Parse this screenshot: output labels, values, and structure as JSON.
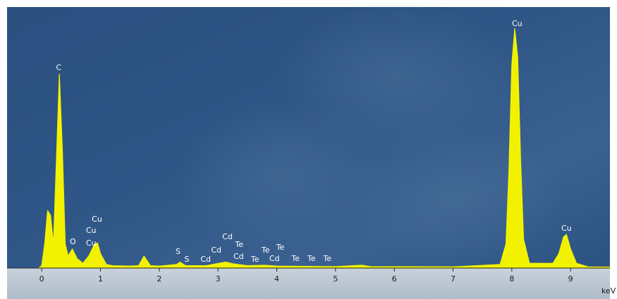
{
  "chart_data": {
    "type": "area",
    "xlabel": "keV",
    "color": "#f2f200",
    "x": [
      -0.05,
      0.0,
      0.05,
      0.1,
      0.15,
      0.2,
      0.25,
      0.3,
      0.35,
      0.4,
      0.45,
      0.52,
      0.6,
      0.7,
      0.8,
      0.9,
      0.95,
      1.0,
      1.1,
      1.2,
      1.5,
      1.65,
      1.74,
      1.85,
      2.0,
      2.3,
      2.35,
      2.45,
      2.8,
      3.13,
      3.25,
      3.5,
      3.8,
      4.0,
      5.0,
      5.45,
      5.6,
      7.0,
      7.8,
      7.9,
      7.95,
      8.0,
      8.05,
      8.1,
      8.15,
      8.2,
      8.3,
      8.7,
      8.8,
      8.88,
      8.93,
      9.0,
      9.1,
      9.3,
      9.67
    ],
    "values": [
      0,
      1,
      10,
      24,
      22,
      10,
      45,
      81,
      50,
      10,
      5,
      8,
      4,
      2,
      5,
      10,
      10.5,
      6,
      1.5,
      1,
      0.8,
      1,
      5,
      1,
      0.8,
      1.5,
      2.5,
      1,
      1,
      2.5,
      1.8,
      1,
      1.2,
      0.8,
      0.6,
      1.2,
      0.6,
      0.5,
      1.5,
      10,
      40,
      85,
      100,
      88,
      45,
      12,
      2,
      2,
      6,
      13,
      14,
      8,
      2,
      0.5,
      0.4
    ],
    "xlim": [
      -0.59,
      9.67
    ],
    "ylim": [
      0,
      109
    ],
    "xticks": [
      0,
      1,
      2,
      3,
      4,
      5,
      6,
      7,
      8,
      9
    ],
    "annotations": [
      {
        "text": "C",
        "x": 0.29,
        "y": 83.6
      },
      {
        "text": "Cu",
        "x": 8.09,
        "y": 102
      },
      {
        "text": "Cu",
        "x": 8.93,
        "y": 16.4
      },
      {
        "text": "O",
        "x": 0.53,
        "y": 10.9
      },
      {
        "text": "Cu",
        "x": 0.94,
        "y": 20.2
      },
      {
        "text": "Cu",
        "x": 0.84,
        "y": 15.5
      },
      {
        "text": "Cu",
        "x": 0.84,
        "y": 10.3
      },
      {
        "text": "S",
        "x": 2.32,
        "y": 6.7
      },
      {
        "text": "S",
        "x": 2.47,
        "y": 3.5
      },
      {
        "text": "Cd",
        "x": 2.79,
        "y": 3.5
      },
      {
        "text": "Cd",
        "x": 2.97,
        "y": 7.3
      },
      {
        "text": "Cd",
        "x": 3.16,
        "y": 12.9
      },
      {
        "text": "Te",
        "x": 3.36,
        "y": 9.7
      },
      {
        "text": "Cd",
        "x": 3.35,
        "y": 4.7
      },
      {
        "text": "Te",
        "x": 3.63,
        "y": 3.5
      },
      {
        "text": "Te",
        "x": 3.81,
        "y": 7.3
      },
      {
        "text": "Te",
        "x": 4.06,
        "y": 8.5
      },
      {
        "text": "Cd",
        "x": 3.96,
        "y": 3.8
      },
      {
        "text": "Te",
        "x": 4.32,
        "y": 3.8
      },
      {
        "text": "Te",
        "x": 4.59,
        "y": 3.8
      },
      {
        "text": "Te",
        "x": 4.86,
        "y": 3.8
      }
    ]
  }
}
